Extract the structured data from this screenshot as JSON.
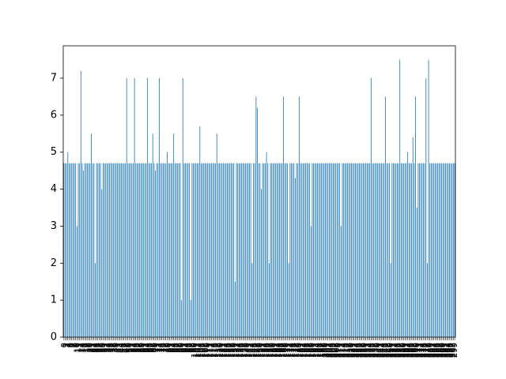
{
  "chart_data": {
    "type": "bar",
    "color": "#1f77b4",
    "categories": [
      0,
      1,
      2,
      3,
      4,
      5,
      6,
      7,
      8,
      9,
      10,
      11,
      12,
      13,
      14,
      15,
      16,
      17,
      18,
      19,
      20,
      21,
      22,
      23,
      24,
      25,
      26,
      27,
      28,
      29,
      30,
      31,
      32,
      33,
      34,
      35,
      36,
      37,
      38,
      39,
      40,
      41,
      42,
      43,
      44,
      45,
      46,
      47,
      48,
      49,
      50,
      51,
      52,
      53,
      54,
      55,
      56,
      57,
      58,
      59,
      60,
      61,
      62,
      63,
      64,
      65,
      66,
      67,
      68,
      69,
      70,
      71,
      72,
      73,
      74,
      75,
      76,
      77,
      78,
      79,
      80,
      81,
      82,
      83,
      84,
      85,
      86,
      87,
      88,
      89,
      90,
      91,
      92,
      93,
      94,
      95,
      96,
      97,
      98,
      99,
      100,
      101,
      102,
      103,
      104,
      105,
      106,
      107,
      108,
      109,
      110,
      111,
      112,
      113,
      114,
      115,
      116,
      117,
      118,
      119,
      120,
      121,
      122,
      123,
      124,
      125,
      126,
      127,
      128,
      129,
      130,
      131,
      132,
      133,
      134,
      135,
      136,
      137,
      138,
      139,
      140,
      141,
      142,
      143,
      144,
      145,
      146,
      147,
      148,
      149,
      150,
      151,
      152,
      153,
      154,
      155,
      156,
      157,
      158,
      159,
      160,
      161,
      162,
      163,
      164,
      165,
      166,
      167,
      168,
      169,
      170,
      171,
      172,
      173,
      174,
      175,
      176,
      177,
      178,
      179,
      180,
      181,
      182,
      183,
      184,
      185,
      186,
      187,
      188,
      189,
      190,
      191,
      192,
      193,
      194,
      195,
      196,
      197,
      198,
      199,
      200,
      201,
      202,
      203,
      204,
      205,
      206,
      207,
      208,
      209,
      210,
      211,
      212,
      213,
      214,
      215,
      216,
      217,
      218,
      219,
      220,
      221,
      222,
      223,
      224,
      225,
      226,
      227,
      228,
      229,
      230,
      231,
      232,
      233,
      234,
      235,
      236,
      237,
      238,
      239,
      240,
      241,
      242,
      243,
      244,
      245,
      246,
      247,
      248,
      249,
      250,
      251,
      252,
      253,
      254,
      255,
      256,
      257,
      258,
      259,
      260,
      261,
      262,
      263,
      264,
      265,
      266,
      267,
      268,
      269,
      270,
      271,
      272,
      273,
      274,
      275,
      276,
      277,
      278,
      279,
      280,
      281,
      282,
      283,
      284,
      285,
      286,
      287,
      288,
      289,
      290,
      291,
      292,
      293,
      294,
      295,
      296,
      297,
      298,
      299
    ],
    "values": [
      4.7,
      4.7,
      4.7,
      5.0,
      4.7,
      4.7,
      4.7,
      4.7,
      4.7,
      4.7,
      3.0,
      4.7,
      4.7,
      7.2,
      4.7,
      4.5,
      4.7,
      4.7,
      4.7,
      4.7,
      4.7,
      5.5,
      4.7,
      4.7,
      2.0,
      4.7,
      4.7,
      4.7,
      4.7,
      4.0,
      4.7,
      4.7,
      4.7,
      4.7,
      4.7,
      4.7,
      4.7,
      4.7,
      4.7,
      4.7,
      4.7,
      4.7,
      4.7,
      4.7,
      4.7,
      4.7,
      4.7,
      4.7,
      7.0,
      4.7,
      4.7,
      4.7,
      4.7,
      4.7,
      7.0,
      4.7,
      4.7,
      4.7,
      4.7,
      4.7,
      4.7,
      4.7,
      4.7,
      4.7,
      7.0,
      4.7,
      4.7,
      4.7,
      5.5,
      4.7,
      4.5,
      4.7,
      4.7,
      7.0,
      4.7,
      4.7,
      4.7,
      4.7,
      4.7,
      5.0,
      4.7,
      4.7,
      4.7,
      4.7,
      5.5,
      4.7,
      4.7,
      4.7,
      4.7,
      4.7,
      1.0,
      7.0,
      4.7,
      4.7,
      4.7,
      4.7,
      4.7,
      1.0,
      4.7,
      4.7,
      4.7,
      4.7,
      4.7,
      4.7,
      5.7,
      4.7,
      4.7,
      4.7,
      4.7,
      4.7,
      4.7,
      4.7,
      4.7,
      4.7,
      4.7,
      4.7,
      4.7,
      5.5,
      4.7,
      4.7,
      4.7,
      4.7,
      4.7,
      4.7,
      4.7,
      4.7,
      4.7,
      4.7,
      4.7,
      4.7,
      4.7,
      1.5,
      4.7,
      4.7,
      4.7,
      4.7,
      4.7,
      4.7,
      4.7,
      4.7,
      4.7,
      4.7,
      4.7,
      4.7,
      2.0,
      4.7,
      4.7,
      6.5,
      6.2,
      4.7,
      4.7,
      4.0,
      4.7,
      4.7,
      4.7,
      5.0,
      4.7,
      2.0,
      4.7,
      4.7,
      4.7,
      4.7,
      4.7,
      4.7,
      4.7,
      4.7,
      4.7,
      4.7,
      6.5,
      4.7,
      4.7,
      4.7,
      2.0,
      4.7,
      4.7,
      4.7,
      4.7,
      4.3,
      4.7,
      4.7,
      6.5,
      4.7,
      4.7,
      4.7,
      4.7,
      4.7,
      4.7,
      4.7,
      4.7,
      3.0,
      4.7,
      4.7,
      4.7,
      4.7,
      4.7,
      4.7,
      4.7,
      4.7,
      4.7,
      4.7,
      4.7,
      4.7,
      4.7,
      4.7,
      4.7,
      4.7,
      4.7,
      4.7,
      4.7,
      4.7,
      4.7,
      4.7,
      3.0,
      4.7,
      4.7,
      4.7,
      4.7,
      4.7,
      4.7,
      4.7,
      4.7,
      4.7,
      4.7,
      4.7,
      4.7,
      4.7,
      4.7,
      4.7,
      4.7,
      4.7,
      4.7,
      4.7,
      4.7,
      4.7,
      4.7,
      7.0,
      4.7,
      4.7,
      4.7,
      4.7,
      4.7,
      4.7,
      4.7,
      4.7,
      4.7,
      4.7,
      6.5,
      4.7,
      4.7,
      4.7,
      2.0,
      4.7,
      4.7,
      4.7,
      4.7,
      4.7,
      4.7,
      7.5,
      4.7,
      4.7,
      4.7,
      4.7,
      4.7,
      5.0,
      4.7,
      4.7,
      4.7,
      5.4,
      4.7,
      6.5,
      3.5,
      4.7,
      4.7,
      4.7,
      4.7,
      4.7,
      4.7,
      7.0,
      2.0,
      7.5,
      4.7,
      4.7,
      4.7,
      4.7,
      4.7,
      4.7,
      4.7,
      4.7,
      4.7,
      4.7,
      4.7,
      4.7,
      4.7,
      4.7,
      4.7,
      4.7,
      4.7,
      4.7,
      4.7,
      4.7
    ],
    "ylim": [
      0,
      7.875
    ],
    "yticks": [
      0,
      1,
      2,
      3,
      4,
      5,
      6,
      7
    ]
  }
}
